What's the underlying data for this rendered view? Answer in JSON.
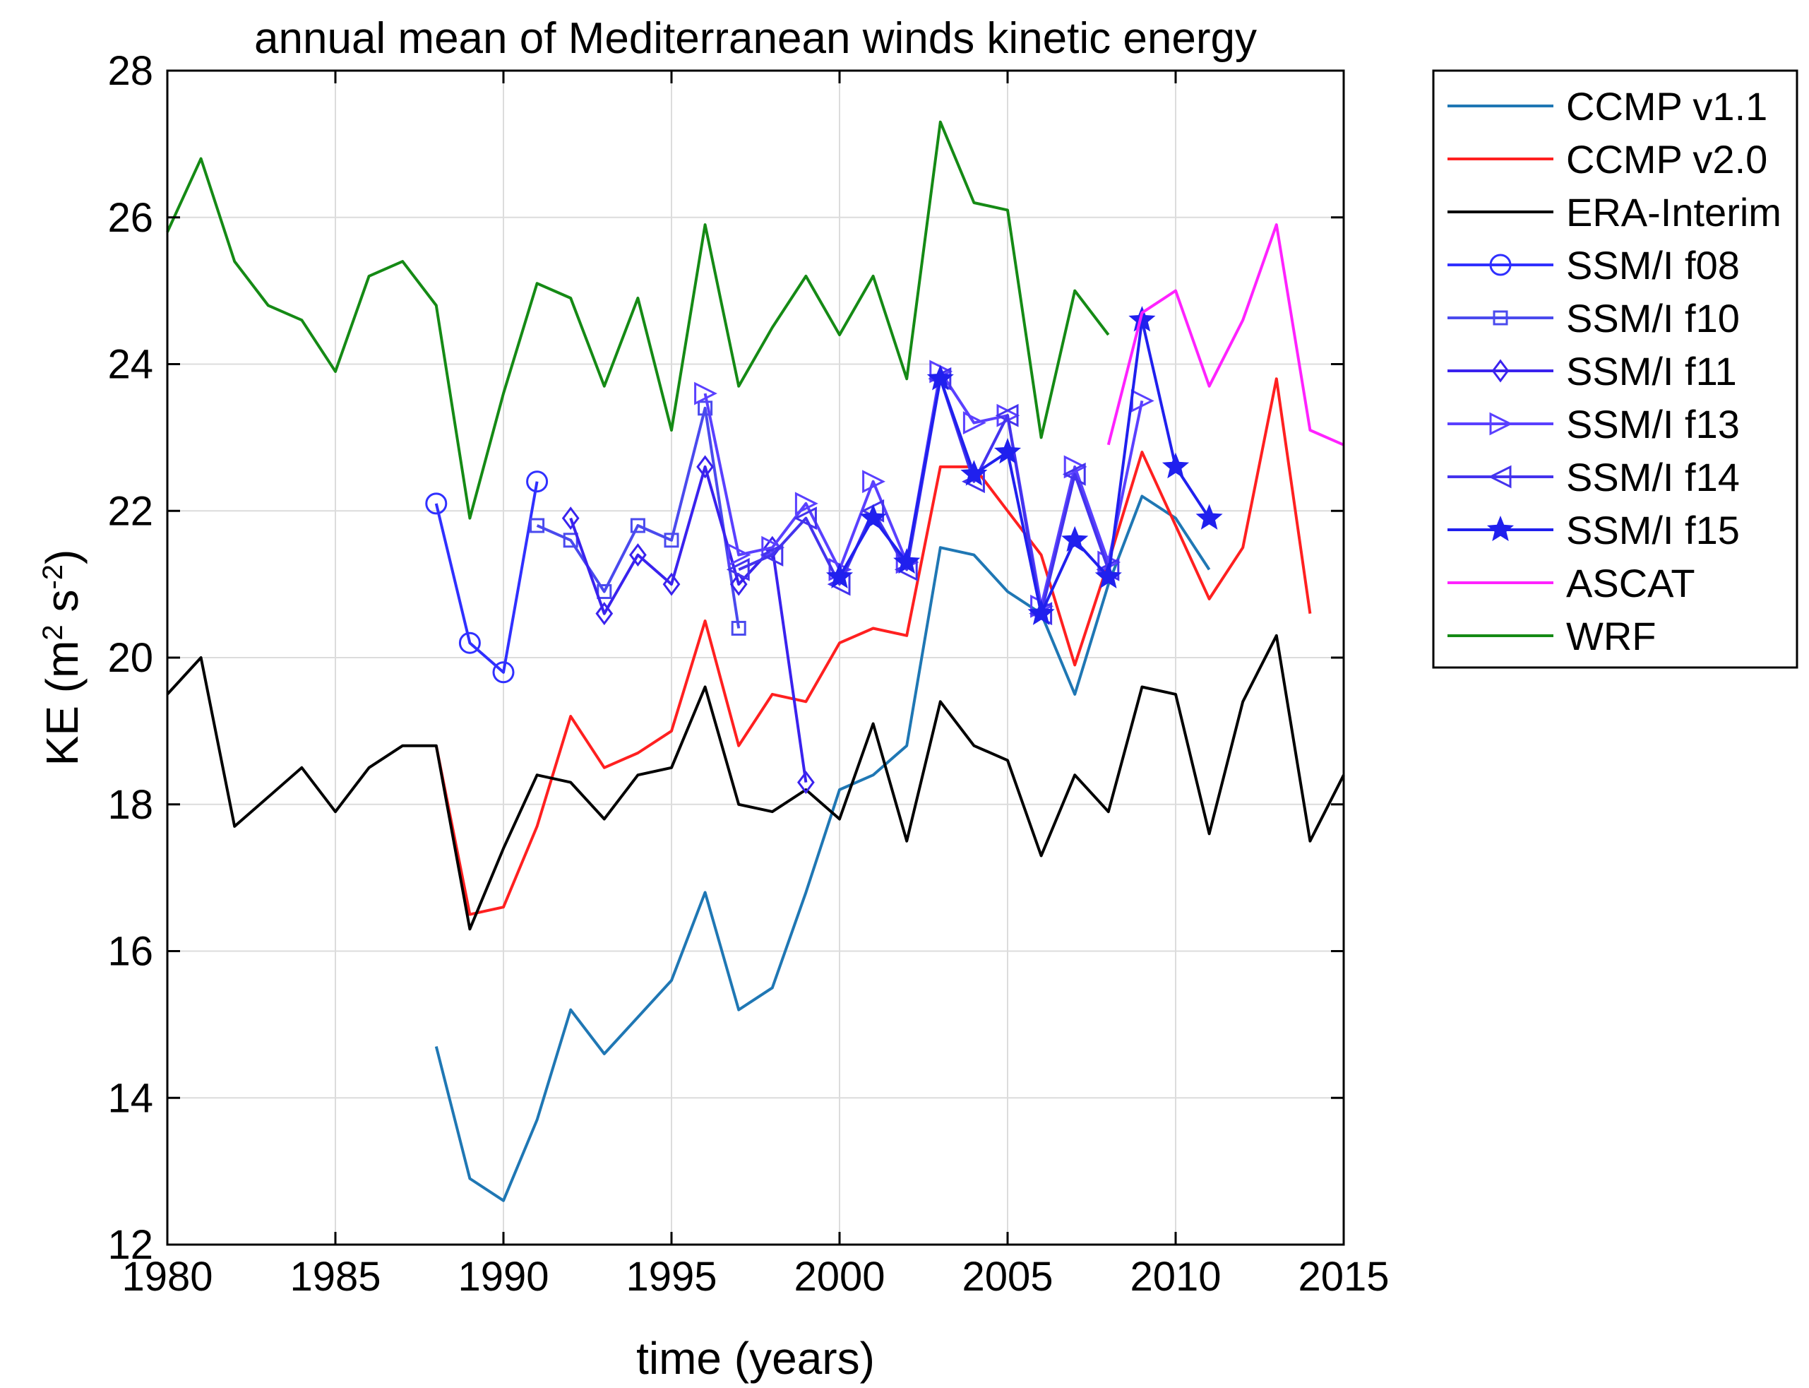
{
  "chart_data": {
    "type": "line",
    "title": "annual mean of Mediterranean winds kinetic energy",
    "xlabel": "time (years)",
    "ylabel_base": "KE (m",
    "ylabel_sup1": "2",
    "ylabel_mid": " s",
    "ylabel_sup2": "-2",
    "ylabel_end": ")",
    "xlim": [
      1980,
      2015
    ],
    "ylim": [
      12,
      28
    ],
    "xticks": [
      1980,
      1985,
      1990,
      1995,
      2000,
      2005,
      2010,
      2015
    ],
    "yticks": [
      12,
      14,
      16,
      18,
      20,
      22,
      24,
      26,
      28
    ],
    "grid": true,
    "legend_position": "outside-right",
    "series": [
      {
        "name": "CCMP v1.1",
        "color": "#1f77b4",
        "marker": "none",
        "x": [
          1988,
          1989,
          1990,
          1991,
          1992,
          1993,
          1994,
          1995,
          1996,
          1997,
          1998,
          1999,
          2000,
          2001,
          2002,
          2003,
          2004,
          2005,
          2006,
          2007,
          2008,
          2009,
          2010,
          2011
        ],
        "y": [
          14.7,
          12.9,
          12.6,
          13.7,
          15.2,
          14.6,
          15.1,
          15.6,
          16.8,
          15.2,
          15.5,
          16.8,
          18.2,
          18.4,
          18.8,
          21.5,
          21.4,
          20.9,
          20.6,
          19.5,
          21.0,
          22.2,
          21.9,
          21.2
        ]
      },
      {
        "name": "CCMP v2.0",
        "color": "#ff2020",
        "marker": "none",
        "x": [
          1988,
          1989,
          1990,
          1991,
          1992,
          1993,
          1994,
          1995,
          1996,
          1997,
          1998,
          1999,
          2000,
          2001,
          2002,
          2003,
          2004,
          2005,
          2006,
          2007,
          2008,
          2009,
          2010,
          2011,
          2012,
          2013,
          2014
        ],
        "y": [
          18.8,
          16.5,
          16.6,
          17.7,
          19.2,
          18.5,
          18.7,
          19.0,
          20.5,
          18.8,
          19.5,
          19.4,
          20.2,
          20.4,
          20.3,
          22.6,
          22.6,
          22.0,
          21.4,
          19.9,
          21.3,
          22.8,
          21.8,
          20.8,
          21.5,
          23.8,
          20.6
        ]
      },
      {
        "name": "ERA-Interim",
        "color": "#000000",
        "marker": "none",
        "x": [
          1980,
          1981,
          1982,
          1983,
          1984,
          1985,
          1986,
          1987,
          1988,
          1989,
          1990,
          1991,
          1992,
          1993,
          1994,
          1995,
          1996,
          1997,
          1998,
          1999,
          2000,
          2001,
          2002,
          2003,
          2004,
          2005,
          2006,
          2007,
          2008,
          2009,
          2010,
          2011,
          2012,
          2013,
          2014,
          2015
        ],
        "y": [
          19.5,
          20.0,
          17.7,
          18.1,
          18.5,
          17.9,
          18.5,
          18.8,
          18.8,
          16.3,
          17.4,
          18.4,
          18.3,
          17.8,
          18.4,
          18.5,
          19.6,
          18.0,
          17.9,
          18.2,
          17.8,
          19.1,
          17.5,
          19.4,
          18.8,
          18.6,
          17.3,
          18.4,
          17.9,
          19.6,
          19.5,
          17.6,
          19.4,
          20.3,
          17.5,
          18.4
        ]
      },
      {
        "name": "SSM/I f08",
        "color": "#3030ff",
        "marker": "circle",
        "x": [
          1988,
          1989,
          1990,
          1991
        ],
        "y": [
          22.1,
          20.2,
          19.8,
          22.4
        ]
      },
      {
        "name": "SSM/I f10",
        "color": "#4a4aee",
        "marker": "square",
        "x": [
          1991,
          1992,
          1993,
          1994,
          1995,
          1996,
          1997
        ],
        "y": [
          21.8,
          21.6,
          20.9,
          21.8,
          21.6,
          23.4,
          20.4
        ]
      },
      {
        "name": "SSM/I f11",
        "color": "#3a22ee",
        "marker": "diamond",
        "x": [
          1992,
          1993,
          1994,
          1995,
          1996,
          1997,
          1998,
          1999
        ],
        "y": [
          21.9,
          20.6,
          21.4,
          21.0,
          22.6,
          21.0,
          21.5,
          18.3
        ]
      },
      {
        "name": "SSM/I f13",
        "color": "#5a40ff",
        "marker": "triangle-right",
        "x": [
          1996,
          1997,
          1998,
          1999,
          2000,
          2001,
          2002,
          2003,
          2004,
          2005,
          2006,
          2007,
          2008,
          2009
        ],
        "y": [
          23.6,
          21.4,
          21.5,
          22.1,
          21.2,
          22.4,
          21.3,
          23.9,
          23.2,
          23.3,
          20.7,
          22.6,
          21.3,
          23.5
        ]
      },
      {
        "name": "SSM/I f14",
        "color": "#4433ee",
        "marker": "triangle-left",
        "x": [
          1997,
          1998,
          1999,
          2000,
          2001,
          2002,
          2003,
          2004,
          2005,
          2006,
          2007,
          2008
        ],
        "y": [
          21.2,
          21.4,
          21.9,
          21.0,
          22.0,
          21.2,
          23.8,
          22.4,
          23.3,
          20.6,
          22.5,
          21.2
        ]
      },
      {
        "name": "SSM/I f15",
        "color": "#2020ee",
        "marker": "star",
        "x": [
          2000,
          2001,
          2002,
          2003,
          2004,
          2005,
          2006,
          2007,
          2008,
          2009,
          2010,
          2011
        ],
        "y": [
          21.1,
          21.9,
          21.3,
          23.8,
          22.5,
          22.8,
          20.6,
          21.6,
          21.1,
          24.6,
          22.6,
          21.9
        ]
      },
      {
        "name": "ASCAT",
        "color": "#ff22ff",
        "marker": "none",
        "x": [
          2008,
          2009,
          2010,
          2011,
          2012,
          2013,
          2014,
          2015
        ],
        "y": [
          22.9,
          24.7,
          25.0,
          23.7,
          24.6,
          25.9,
          23.1,
          22.9
        ]
      },
      {
        "name": "WRF",
        "color": "#158a15",
        "marker": "none",
        "x": [
          1980,
          1981,
          1982,
          1983,
          1984,
          1985,
          1986,
          1987,
          1988,
          1989,
          1990,
          1991,
          1992,
          1993,
          1994,
          1995,
          1996,
          1997,
          1998,
          1999,
          2000,
          2001,
          2002,
          2003,
          2004,
          2005,
          2006,
          2007,
          2008
        ],
        "y": [
          25.8,
          26.8,
          25.4,
          24.8,
          24.6,
          23.9,
          25.2,
          25.4,
          24.8,
          21.9,
          23.6,
          25.1,
          24.9,
          23.7,
          24.9,
          23.1,
          25.9,
          23.7,
          24.5,
          25.2,
          24.4,
          25.2,
          23.8,
          27.3,
          26.2,
          26.1,
          23.0,
          25.0,
          24.4
        ]
      }
    ]
  }
}
